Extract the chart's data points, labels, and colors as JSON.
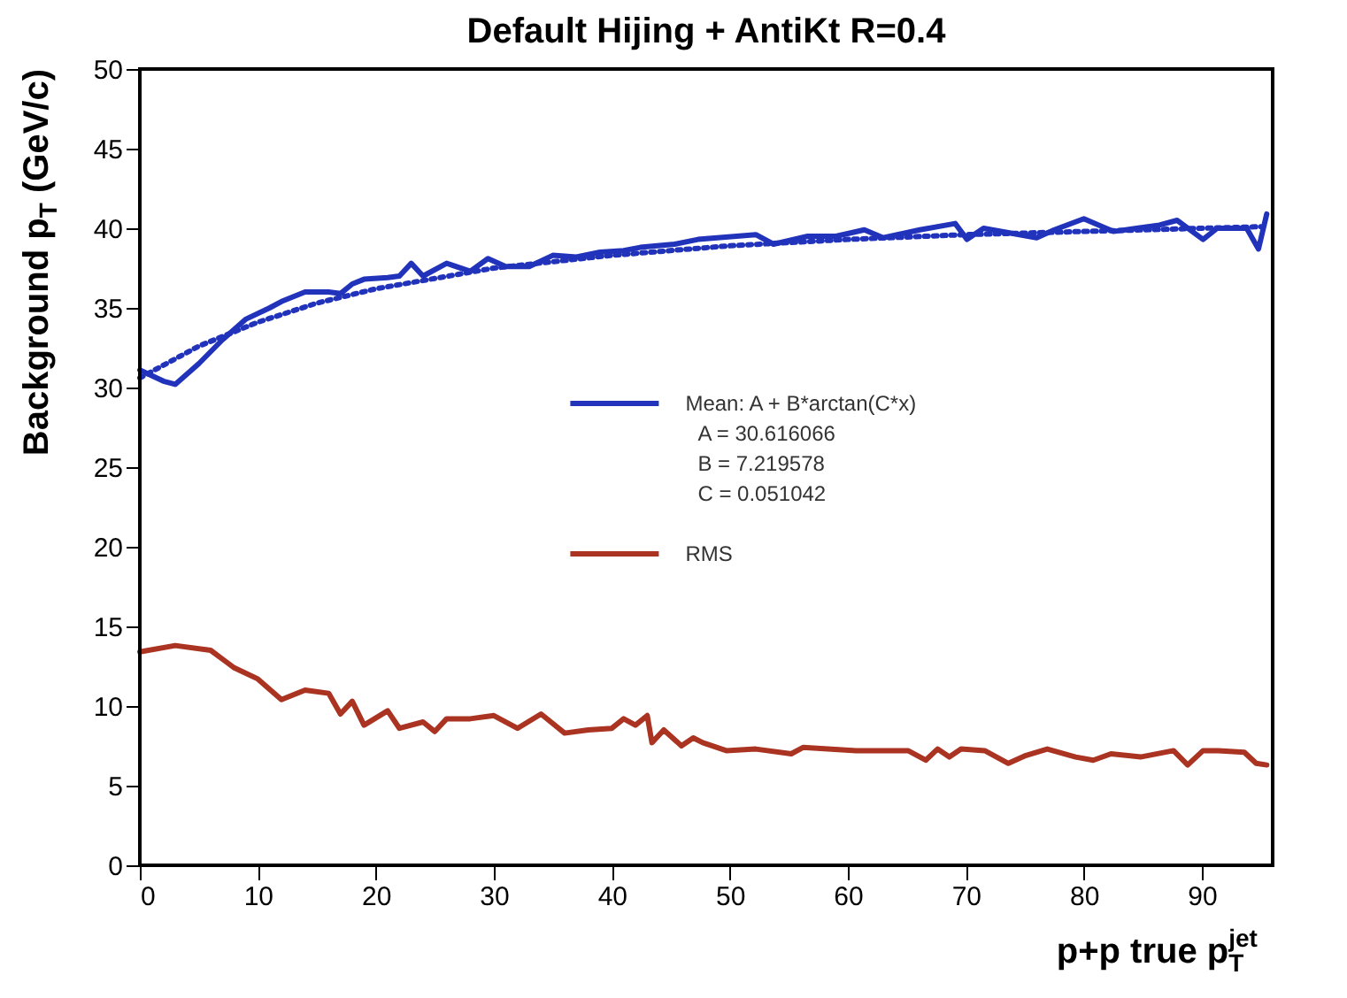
{
  "chart_data": {
    "type": "line",
    "title": "Default Hijing + AntiKt R=0.4",
    "xlabel": "p+p true p$_{T}$$^{jet}$",
    "ylabel": "Background p$_{T}$ (GeV/c)",
    "xlim": [
      0,
      96
    ],
    "ylim": [
      0,
      50
    ],
    "xticks": [
      0,
      10,
      20,
      30,
      40,
      50,
      60,
      70,
      80,
      90
    ],
    "yticks": [
      0,
      5,
      10,
      15,
      20,
      25,
      30,
      35,
      40,
      45,
      50
    ],
    "grid": false,
    "legend": "center",
    "annotations": [
      "A = 30.616066",
      "B = 7.219578",
      "C = 0.051042"
    ],
    "series": [
      {
        "name": "Mean: A + B*arctan(C*x)",
        "color": "#2233bb",
        "line_style": "solid",
        "x": [
          0,
          2,
          3,
          5,
          7,
          9,
          11,
          12,
          14,
          16,
          17,
          18,
          19,
          21,
          22,
          23,
          24,
          26,
          28,
          29.5,
          31,
          33,
          35,
          37,
          39,
          41,
          42.4,
          45.3,
          47.3,
          52.2,
          53.7,
          56.6,
          59,
          61.4,
          63,
          66.1,
          69.1,
          70.1,
          71.5,
          76,
          77.5,
          80,
          82.5,
          86.4,
          87.9,
          90.1,
          91.3,
          93.8,
          94.8,
          95.5
        ],
        "values": [
          31.1,
          30.4,
          30.2,
          31.5,
          33,
          34.3,
          35,
          35.4,
          36,
          36,
          35.9,
          36.5,
          36.8,
          36.9,
          37,
          37.8,
          37,
          37.8,
          37.3,
          38.1,
          37.6,
          37.6,
          38.3,
          38.2,
          38.5,
          38.6,
          38.8,
          39,
          39.3,
          39.6,
          39,
          39.5,
          39.5,
          39.9,
          39.4,
          39.9,
          40.3,
          39.3,
          40,
          39.4,
          39.9,
          40.6,
          39.8,
          40.2,
          40.5,
          39.3,
          40,
          40,
          38.7,
          40.9
        ]
      },
      {
        "color": "#2233bb",
        "line_style": "dotted",
        "x": [
          0,
          5,
          10,
          15,
          20,
          30,
          40,
          50,
          60,
          70,
          80,
          95
        ],
        "values": [
          30.6,
          32.6,
          34.1,
          35.3,
          36.2,
          37.5,
          38.3,
          38.9,
          39.3,
          39.6,
          39.8,
          40.1
        ]
      },
      {
        "name": "RMS",
        "color": "#aa3322",
        "line_style": "solid",
        "x": [
          0,
          3,
          6,
          8,
          10,
          12,
          14,
          16,
          17,
          18,
          19,
          21,
          22,
          24,
          25,
          26,
          28,
          30,
          32,
          34,
          36,
          38,
          40,
          41,
          42,
          43,
          43.4,
          44.4,
          45.9,
          46.9,
          47.7,
          49.7,
          52.2,
          55.2,
          56.2,
          60.7,
          65.1,
          66.6,
          67.6,
          68.6,
          69.6,
          71.6,
          73.6,
          75.1,
          76.9,
          79.3,
          80.8,
          82.3,
          84.8,
          87.6,
          88.8,
          90.1,
          91.4,
          93.6,
          94.6,
          95.5
        ],
        "values": [
          13.4,
          13.8,
          13.5,
          12.4,
          11.7,
          10.4,
          11,
          10.8,
          9.5,
          10.3,
          8.8,
          9.7,
          8.6,
          9,
          8.4,
          9.2,
          9.2,
          9.4,
          8.6,
          9.5,
          8.3,
          8.5,
          8.6,
          9.2,
          8.8,
          9.4,
          7.7,
          8.5,
          7.5,
          8,
          7.7,
          7.2,
          7.3,
          7,
          7.4,
          7.2,
          7.2,
          6.6,
          7.3,
          6.8,
          7.3,
          7.2,
          6.4,
          6.9,
          7.3,
          6.8,
          6.6,
          7,
          6.8,
          7.2,
          6.3,
          7.2,
          7.2,
          7.1,
          6.4,
          6.3
        ]
      }
    ]
  }
}
